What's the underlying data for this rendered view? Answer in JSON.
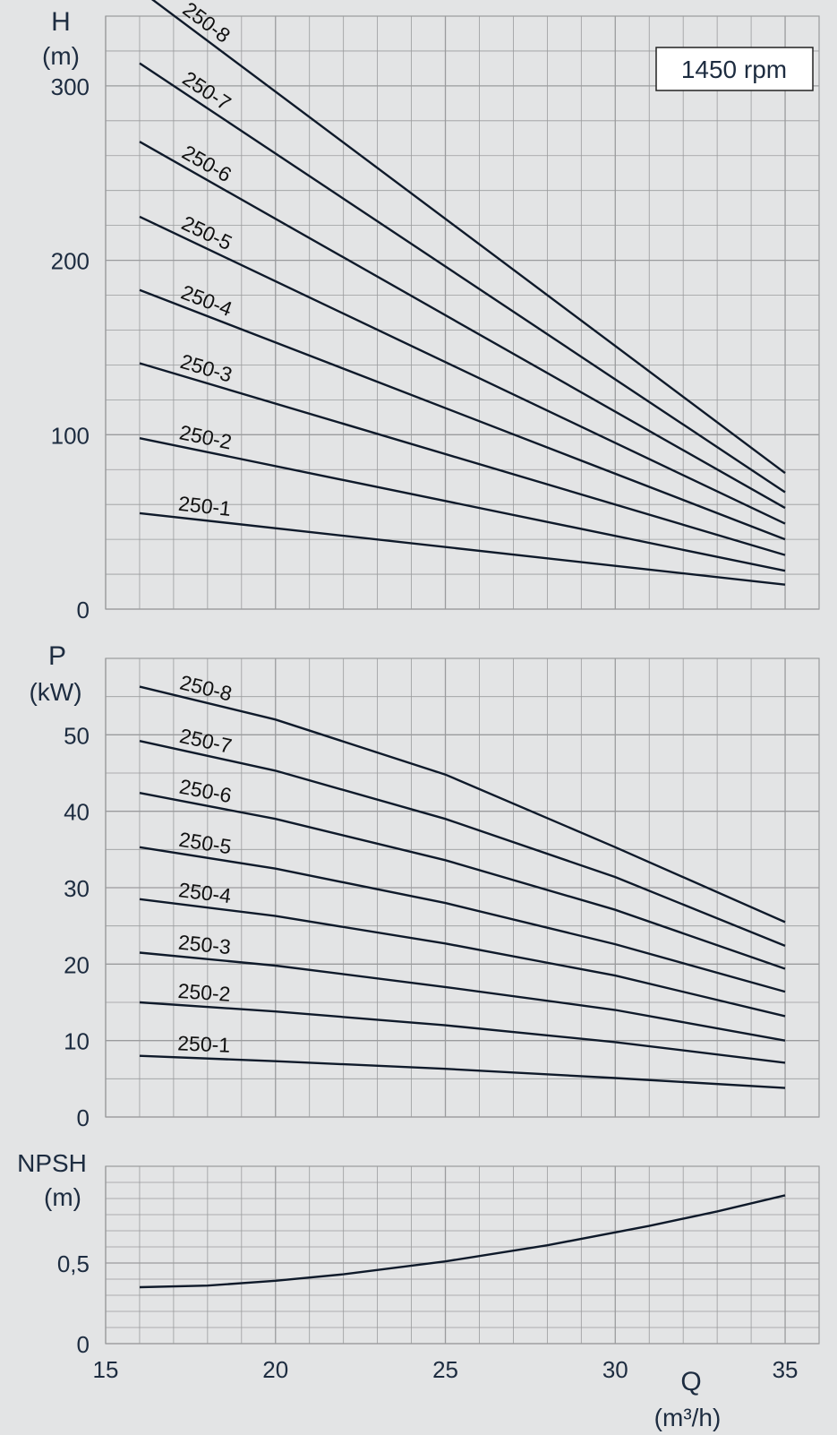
{
  "colors": {
    "background": "#e3e4e5",
    "grid": "#9a9b9d",
    "curve": "#0f1a2a",
    "text": "#1d2c40"
  },
  "chart_data": [
    {
      "type": "line",
      "title": "",
      "ylabel": "H",
      "yunit": "(m)",
      "badge": "1450 rpm",
      "xlim": [
        15,
        36
      ],
      "ylim": [
        0,
        340
      ],
      "yticks": [
        0,
        100,
        200,
        300
      ],
      "ytick_labels": [
        "0",
        "100",
        "200",
        "300"
      ],
      "grid": true,
      "series": [
        {
          "name": "250-1",
          "x": [
            16,
            35
          ],
          "y": [
            55,
            14
          ]
        },
        {
          "name": "250-2",
          "x": [
            16,
            35
          ],
          "y": [
            98,
            22
          ]
        },
        {
          "name": "250-3",
          "x": [
            16,
            35
          ],
          "y": [
            141,
            31
          ]
        },
        {
          "name": "250-4",
          "x": [
            16,
            35
          ],
          "y": [
            183,
            40
          ]
        },
        {
          "name": "250-5",
          "x": [
            16,
            35
          ],
          "y": [
            225,
            49
          ]
        },
        {
          "name": "250-6",
          "x": [
            16,
            35
          ],
          "y": [
            268,
            58
          ]
        },
        {
          "name": "250-7",
          "x": [
            16,
            35
          ],
          "y": [
            313,
            67
          ]
        },
        {
          "name": "250-8",
          "x": [
            16,
            35
          ],
          "y": [
            355,
            78
          ]
        }
      ]
    },
    {
      "type": "line",
      "title": "",
      "ylabel": "P",
      "yunit": "(kW)",
      "xlim": [
        15,
        36
      ],
      "ylim": [
        0,
        60
      ],
      "yticks": [
        0,
        10,
        20,
        30,
        40,
        50
      ],
      "ytick_labels": [
        "0",
        "10",
        "20",
        "30",
        "40",
        "50"
      ],
      "grid": true,
      "series": [
        {
          "name": "250-1",
          "x": [
            16,
            20,
            25,
            30,
            35
          ],
          "y": [
            8,
            7.3,
            6.3,
            5.1,
            3.8
          ]
        },
        {
          "name": "250-2",
          "x": [
            16,
            20,
            25,
            30,
            35
          ],
          "y": [
            15,
            13.8,
            12,
            9.8,
            7.1
          ]
        },
        {
          "name": "250-3",
          "x": [
            16,
            20,
            25,
            30,
            35
          ],
          "y": [
            21.5,
            19.8,
            17,
            14,
            10
          ]
        },
        {
          "name": "250-4",
          "x": [
            16,
            20,
            25,
            30,
            35
          ],
          "y": [
            28.5,
            26.3,
            22.7,
            18.5,
            13.2
          ]
        },
        {
          "name": "250-5",
          "x": [
            16,
            20,
            25,
            30,
            35
          ],
          "y": [
            35.3,
            32.5,
            28,
            22.6,
            16.4
          ]
        },
        {
          "name": "250-6",
          "x": [
            16,
            20,
            25,
            30,
            35
          ],
          "y": [
            42.4,
            39,
            33.6,
            27.1,
            19.4
          ]
        },
        {
          "name": "250-7",
          "x": [
            16,
            20,
            25,
            30,
            35
          ],
          "y": [
            49.2,
            45.3,
            39,
            31.4,
            22.4
          ]
        },
        {
          "name": "250-8",
          "x": [
            16,
            20,
            25,
            30,
            35
          ],
          "y": [
            56.3,
            52,
            44.8,
            35.3,
            25.5
          ]
        }
      ]
    },
    {
      "type": "line",
      "title": "",
      "ylabel": "NPSH",
      "yunit": "(m)",
      "xlabel": "Q",
      "xunit": "(m³/h)",
      "xlim": [
        15,
        36
      ],
      "ylim": [
        0,
        1.1
      ],
      "yticks": [
        0,
        0.5
      ],
      "ytick_labels": [
        "0",
        "0,5"
      ],
      "xticks": [
        15,
        20,
        25,
        30,
        35
      ],
      "xtick_labels": [
        "15",
        "20",
        "25",
        "30",
        "35"
      ],
      "grid": true,
      "series": [
        {
          "x": [
            16,
            18,
            20,
            22,
            25,
            28,
            31,
            33,
            35
          ],
          "y": [
            0.35,
            0.36,
            0.39,
            0.43,
            0.51,
            0.61,
            0.73,
            0.82,
            0.92
          ]
        }
      ]
    }
  ]
}
